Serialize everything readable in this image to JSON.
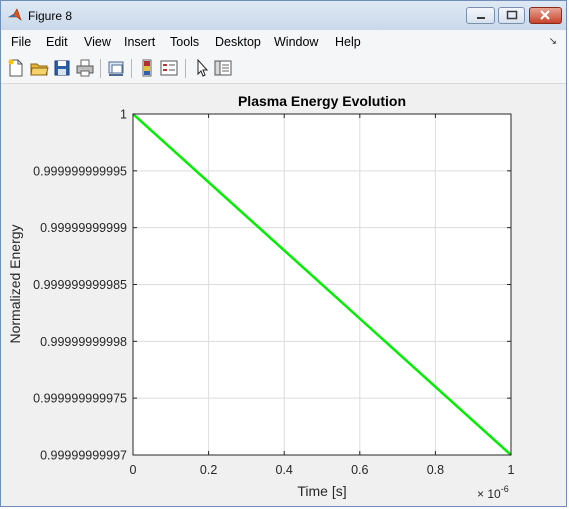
{
  "window": {
    "title": "Figure 8"
  },
  "menu": {
    "items": [
      "File",
      "Edit",
      "View",
      "Insert",
      "Tools",
      "Desktop",
      "Window",
      "Help"
    ]
  },
  "toolbar": {
    "icons": [
      "new-figure-icon",
      "open-file-icon",
      "save-icon",
      "print-icon",
      "link-plot-icon",
      "insert-colorbar-icon",
      "insert-legend-icon",
      "edit-plot-pointer-icon",
      "property-inspector-icon"
    ]
  },
  "chart_data": {
    "type": "line",
    "title": "Plasma Energy Evolution",
    "xlabel": "Time [s]",
    "ylabel": "Normalized Energy",
    "x_exponent_label": "× 10",
    "x_exponent_power": "-6",
    "xlim": [
      0,
      1e-06
    ],
    "ylim": [
      0.99999999997,
      1.0
    ],
    "xticks": [
      0,
      2e-07,
      4e-07,
      6e-07,
      8e-07,
      1e-06
    ],
    "xtick_labels": [
      "0",
      "0.2",
      "0.4",
      "0.6",
      "0.8",
      "1"
    ],
    "yticks": [
      1.0,
      0.999999999995,
      0.99999999999,
      0.999999999985,
      0.99999999998,
      0.999999999975,
      0.99999999997
    ],
    "ytick_labels": [
      "1",
      "0.999999999995",
      "0.99999999999",
      "0.999999999985",
      "0.99999999998",
      "0.999999999975",
      "0.99999999997"
    ],
    "grid": true,
    "series": [
      {
        "color": "#00ee00",
        "x": [
          0,
          1e-06
        ],
        "y": [
          1.0,
          0.99999999997
        ]
      }
    ]
  }
}
